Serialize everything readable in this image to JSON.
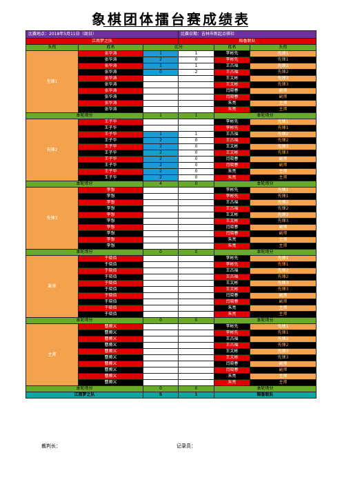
{
  "title": "象棋团体擂台赛成绩表",
  "info": {
    "venue": "比赛地点：2018年5月11日（周日）",
    "date": "比赛日期：吉林市新起点棋社"
  },
  "teams": {
    "left": "江南梦之队",
    "right": "稻香联队"
  },
  "headers": {
    "title_l": "头衔",
    "name_l": "姓名",
    "score": "比分",
    "name_r": "姓名",
    "title_r": "头衔"
  },
  "opponents": [
    {
      "name": "李彬先",
      "title": "先锋1"
    },
    {
      "name": "李彬先",
      "title": "先锋1"
    },
    {
      "name": "王古福",
      "title": "先锋2"
    },
    {
      "name": "王古福",
      "title": "先锋2"
    },
    {
      "name": "王文彬",
      "title": "先锋3"
    },
    {
      "name": "王文彬",
      "title": "先锋3"
    },
    {
      "name": "闫晓春",
      "title": "副帅"
    },
    {
      "name": "闫晓春",
      "title": "副帅"
    },
    {
      "name": "朱亮",
      "title": "主帅"
    },
    {
      "name": "朱亮",
      "title": "主帅"
    }
  ],
  "sections": [
    {
      "label": "先锋1",
      "player": "张华涛",
      "scores": [
        [
          "1",
          "1"
        ],
        [
          "2",
          "0"
        ],
        [
          "1",
          "1"
        ],
        [
          "0",
          "2"
        ],
        [
          "",
          ""
        ],
        [
          "",
          ""
        ],
        [
          "",
          ""
        ],
        [
          "",
          ""
        ],
        [
          "",
          ""
        ],
        [
          "",
          ""
        ]
      ],
      "total": [
        "1",
        "1"
      ]
    },
    {
      "label": "先锋2",
      "player": "王子华",
      "scores": [
        [
          "",
          ""
        ],
        [
          "",
          ""
        ],
        [
          "1",
          "1"
        ],
        [
          "2",
          "0"
        ],
        [
          "2",
          "0"
        ],
        [
          "2",
          "0"
        ],
        [
          "2",
          "0"
        ],
        [
          "2",
          "0"
        ],
        [
          "2",
          "0"
        ],
        [
          "2",
          "0"
        ]
      ],
      "total": [
        "4",
        "0"
      ]
    },
    {
      "label": "先锋3",
      "player": "李想",
      "scores": [
        [
          "",
          ""
        ],
        [
          "",
          ""
        ],
        [
          "",
          ""
        ],
        [
          "",
          ""
        ],
        [
          "",
          ""
        ],
        [
          "",
          ""
        ],
        [
          "",
          ""
        ],
        [
          "",
          ""
        ],
        [
          "",
          ""
        ],
        [
          "",
          ""
        ]
      ],
      "total": [
        "0",
        "0"
      ]
    },
    {
      "label": "副帅",
      "player": "于晓佰",
      "scores": [
        [
          "",
          ""
        ],
        [
          "",
          ""
        ],
        [
          "",
          ""
        ],
        [
          "",
          ""
        ],
        [
          "",
          ""
        ],
        [
          "",
          ""
        ],
        [
          "",
          ""
        ],
        [
          "",
          ""
        ],
        [
          "",
          ""
        ],
        [
          "",
          ""
        ]
      ],
      "total": [
        "0",
        "0"
      ]
    },
    {
      "label": "主帅",
      "player": "曹腾义",
      "scores": [
        [
          "",
          ""
        ],
        [
          "",
          ""
        ],
        [
          "",
          ""
        ],
        [
          "",
          ""
        ],
        [
          "",
          ""
        ],
        [
          "",
          ""
        ],
        [
          "",
          ""
        ],
        [
          "",
          ""
        ],
        [
          "",
          ""
        ],
        [
          "",
          ""
        ]
      ],
      "total": [
        "0",
        "0"
      ]
    }
  ],
  "subtotal_label": "本轮场分",
  "final": {
    "left_team": "江南梦之队",
    "left_score": "5",
    "right_score": "1",
    "right_team": "稻香联队"
  },
  "footer": {
    "referee": "裁判长：",
    "recorder": "记录员："
  }
}
